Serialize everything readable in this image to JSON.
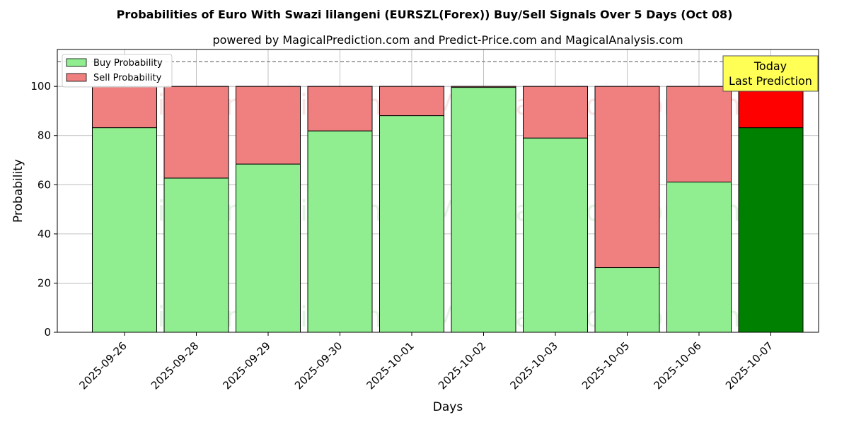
{
  "chart_data": {
    "type": "bar",
    "stacked": true,
    "title": "Probabilities of Euro With Swazi lilangeni (EURSZL(Forex)) Buy/Sell Signals Over 5 Days (Oct 08)",
    "subtitle": "powered by MagicalPrediction.com and Predict-Price.com and MagicalAnalysis.com",
    "xlabel": "Days",
    "ylabel": "Probability",
    "ylim": [
      0,
      115
    ],
    "yticks": [
      0,
      20,
      40,
      60,
      80,
      100
    ],
    "reference_line": 110,
    "grid": true,
    "legend_position": "top-left",
    "categories": [
      "2025-09-26",
      "2025-09-28",
      "2025-09-29",
      "2025-09-30",
      "2025-10-01",
      "2025-10-02",
      "2025-10-03",
      "2025-10-05",
      "2025-10-06",
      "2025-10-07"
    ],
    "series": [
      {
        "name": "Buy Probability",
        "color": "#90ee90",
        "highlight_color": "#008000",
        "values": [
          83.2,
          62.7,
          68.4,
          81.9,
          88.1,
          99.6,
          79.0,
          26.3,
          61.1,
          83.2
        ]
      },
      {
        "name": "Sell Probability",
        "color": "#f08080",
        "highlight_color": "#ff0000",
        "values": [
          16.8,
          37.3,
          31.6,
          18.1,
          11.9,
          0.4,
          21.0,
          73.7,
          38.9,
          16.8
        ]
      }
    ],
    "highlight_index": 9,
    "annotation": {
      "line1": "Today",
      "line2": "Last Prediction",
      "background": "#ffff55"
    },
    "watermarks": [
      "MagicalAnalysis.com",
      "MagicalPrediction.com"
    ]
  }
}
